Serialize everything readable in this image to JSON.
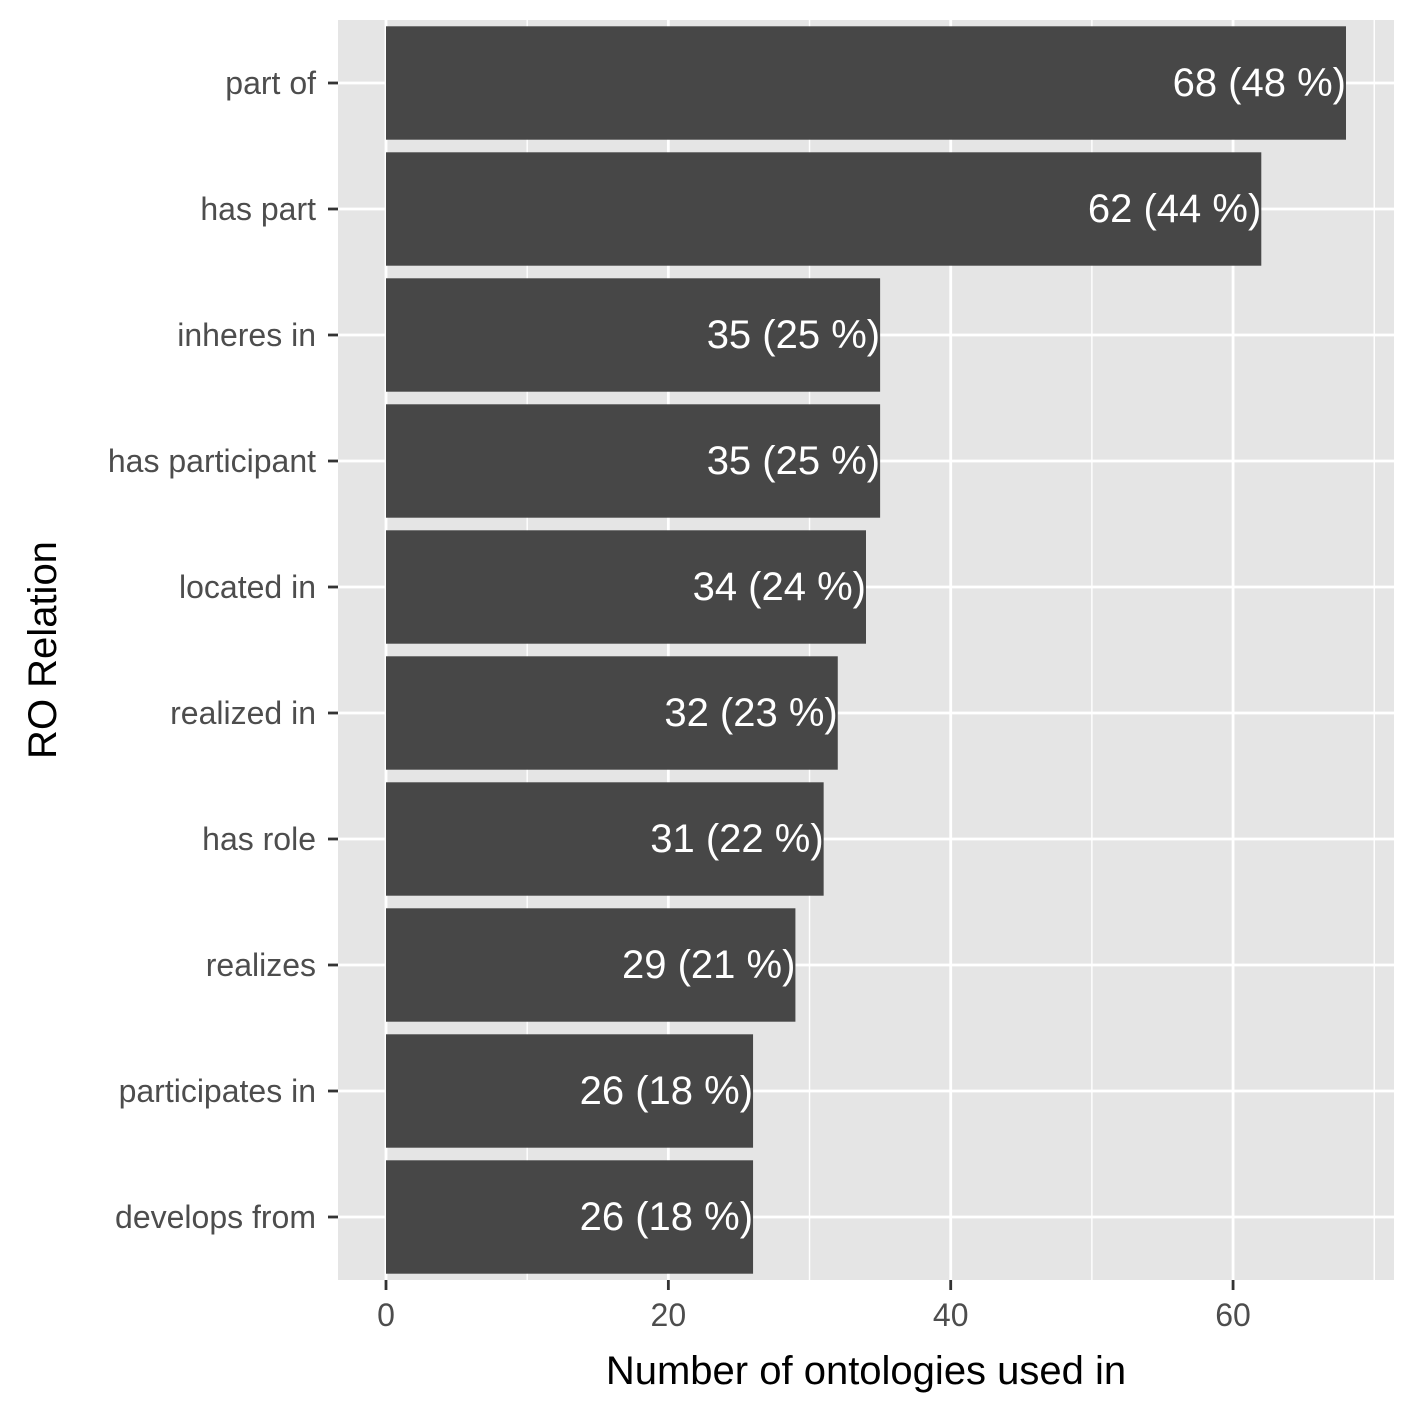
{
  "chart_data": {
    "type": "bar",
    "orientation": "horizontal",
    "title": "",
    "xlabel": "Number of ontologies used in",
    "ylabel": "RO Relation",
    "categories": [
      "part of",
      "has part",
      "inheres in",
      "has participant",
      "located in",
      "realized in",
      "has role",
      "realizes",
      "participates in",
      "develops from"
    ],
    "values": [
      68,
      62,
      35,
      35,
      34,
      32,
      31,
      29,
      26,
      26
    ],
    "data_labels": [
      "68 (48 %)",
      "62 (44 %)",
      "35 (25 %)",
      "35 (25 %)",
      "34 (24 %)",
      "32 (23 %)",
      "31 (22 %)",
      "29 (21 %)",
      "26 (18 %)",
      "26 (18 %)"
    ],
    "xlim": [
      -3.4,
      71.4
    ],
    "x_ticks": [
      0,
      20,
      40,
      60
    ],
    "x_tick_labels": [
      "0",
      "20",
      "40",
      "60"
    ],
    "x_minor_ticks": [
      10,
      30,
      50,
      70
    ],
    "grid": true,
    "legend": "none",
    "colors": {
      "bar": "#474747",
      "panel_background": "#e5e5e5",
      "grid": "#ffffff",
      "tick_text": "#4d4d4d",
      "tick_mark": "#333333",
      "axis_title": "#000000",
      "data_label": "#ffffff"
    }
  }
}
